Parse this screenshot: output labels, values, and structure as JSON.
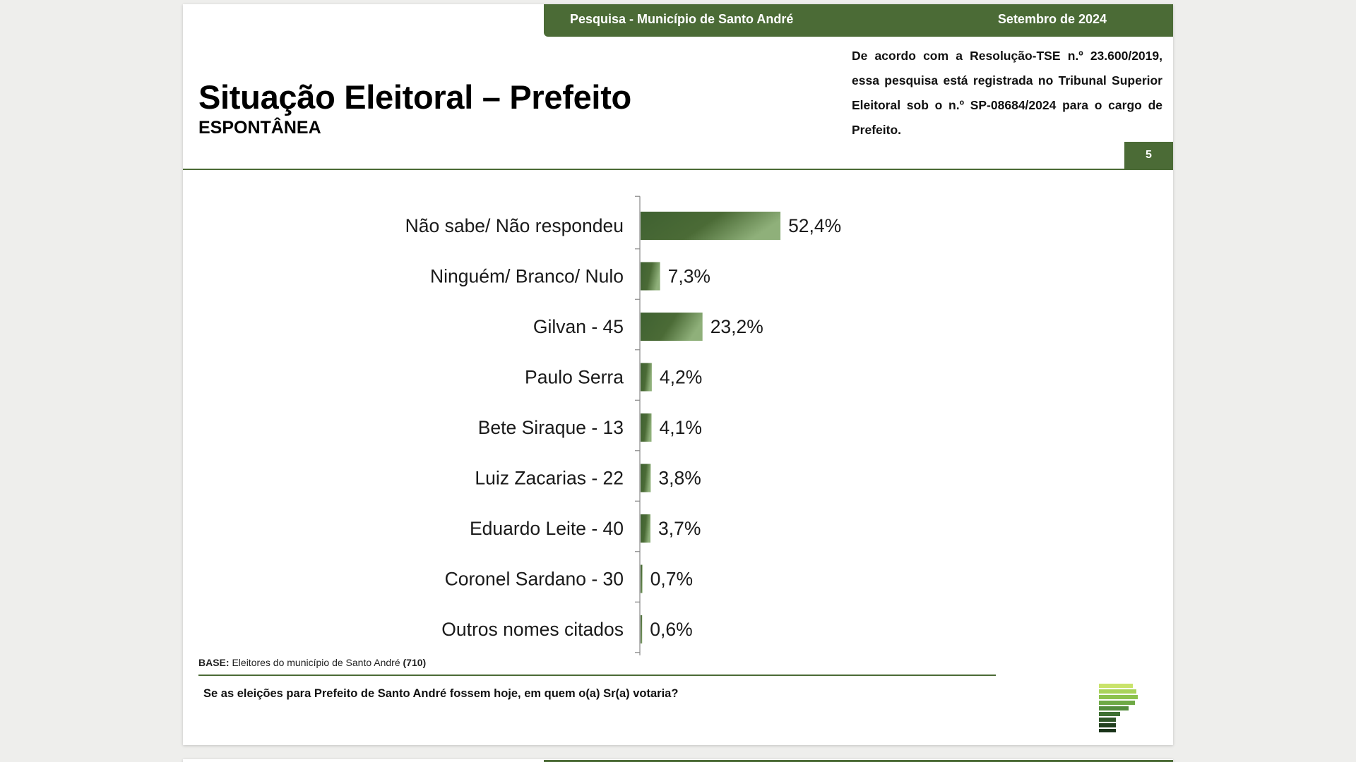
{
  "header": {
    "survey_label": "Pesquisa - Município de Santo André",
    "date_label": "Setembro de 2024"
  },
  "title": "Situação Eleitoral – Prefeito",
  "subtitle": "ESPONTÂNEA",
  "legal_note": "De acordo com a Resolução-TSE n.º 23.600/2019, essa pesquisa está registrada no Tribunal Superior Eleitoral sob o n.º SP-08684/2024 para o cargo de Prefeito.",
  "page_number": "5",
  "base": {
    "label": "BASE:",
    "text": "Eleitores do município de Santo André",
    "count": "(710)"
  },
  "question": "Se as eleições para Prefeito de Santo André fossem hoje, em quem o(a) Sr(a) votaria?",
  "colors": {
    "brand_green": "#4b6b36",
    "bar_gradient_start": "#3f6131",
    "bar_gradient_end": "#8fb07a"
  },
  "logo_icon": "pesquisa-logo-icon",
  "chart_data": {
    "type": "bar",
    "orientation": "horizontal",
    "categories": [
      "Não sabe/ Não respondeu",
      "Ninguém/ Branco/ Nulo",
      "Gilvan - 45",
      "Paulo Serra",
      "Bete Siraque - 13",
      "Luiz Zacarias - 22",
      "Eduardo Leite - 40",
      "Coronel Sardano - 30",
      "Outros nomes citados"
    ],
    "values": [
      52.4,
      7.3,
      23.2,
      4.2,
      4.1,
      3.8,
      3.7,
      0.7,
      0.6
    ],
    "value_labels": [
      "52,4%",
      "7,3%",
      "23,2%",
      "4,2%",
      "4,1%",
      "3,8%",
      "3,7%",
      "0,7%",
      "0,6%"
    ],
    "unit": "%",
    "xlim": [
      0,
      100
    ],
    "grid": false,
    "legend": "none",
    "title": "",
    "xlabel": "",
    "ylabel": ""
  }
}
